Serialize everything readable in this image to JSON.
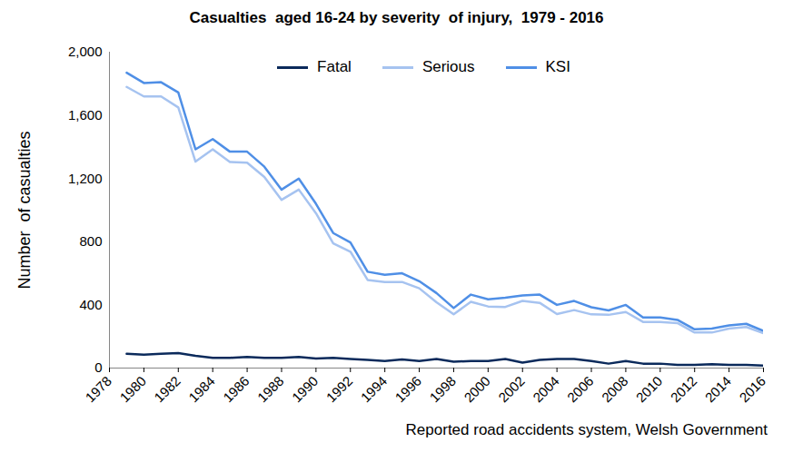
{
  "chart_data": {
    "type": "line",
    "title": "Casualties  aged 16-24 by severity  of injury,  1979 - 2016",
    "caption": "Reported road accidents system, Welsh Government",
    "y_label": "Number  of casualties",
    "x": [
      1979,
      1980,
      1981,
      1982,
      1983,
      1984,
      1985,
      1986,
      1987,
      1988,
      1989,
      1990,
      1991,
      1992,
      1993,
      1994,
      1995,
      1996,
      1997,
      1998,
      1999,
      2000,
      2001,
      2002,
      2003,
      2004,
      2005,
      2006,
      2007,
      2008,
      2009,
      2010,
      2011,
      2012,
      2013,
      2014,
      2015,
      2016
    ],
    "series": [
      {
        "name": "Fatal",
        "color": "#0b2a5b",
        "values": [
          90,
          85,
          90,
          95,
          78,
          65,
          65,
          70,
          65,
          65,
          70,
          60,
          65,
          58,
          52,
          45,
          55,
          45,
          58,
          40,
          45,
          45,
          58,
          35,
          52,
          58,
          58,
          45,
          28,
          45,
          28,
          28,
          20,
          20,
          25,
          20,
          20,
          15
        ]
      },
      {
        "name": "Serious",
        "color": "#a6c3f0",
        "values": [
          1780,
          1720,
          1720,
          1650,
          1307,
          1385,
          1305,
          1300,
          1210,
          1065,
          1130,
          980,
          790,
          737,
          558,
          545,
          545,
          505,
          417,
          340,
          420,
          390,
          387,
          425,
          413,
          342,
          367,
          340,
          337,
          355,
          292,
          292,
          285,
          225,
          225,
          250,
          260,
          220
        ]
      },
      {
        "name": "KSI",
        "color": "#4f8fe6",
        "values": [
          1870,
          1805,
          1810,
          1745,
          1385,
          1450,
          1370,
          1370,
          1275,
          1130,
          1200,
          1040,
          855,
          795,
          610,
          590,
          600,
          550,
          475,
          380,
          465,
          435,
          445,
          460,
          465,
          400,
          425,
          385,
          365,
          400,
          320,
          320,
          305,
          245,
          250,
          270,
          280,
          235
        ]
      }
    ],
    "xlim": [
      1978,
      2016
    ],
    "xticks": [
      1978,
      1980,
      1982,
      1984,
      1986,
      1988,
      1990,
      1992,
      1994,
      1996,
      1998,
      2000,
      2002,
      2004,
      2006,
      2008,
      2010,
      2012,
      2014,
      2016
    ],
    "ylim": [
      0,
      2000
    ],
    "yticks": [
      0,
      400,
      800,
      {
        "value": 1200,
        "label": "1,200"
      },
      {
        "value": 1600,
        "label": "1,600"
      },
      {
        "value": 2000,
        "label": "2,000"
      }
    ],
    "grid": false,
    "legend": "top"
  }
}
